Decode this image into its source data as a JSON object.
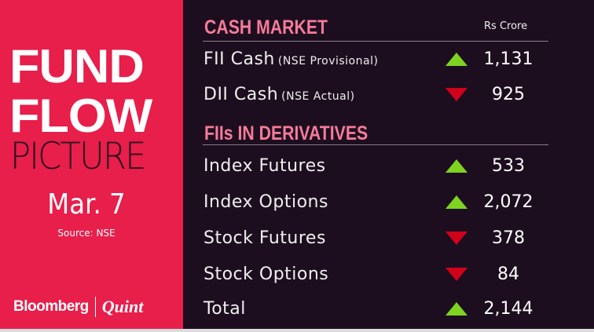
{
  "left": {
    "title1": "FUND",
    "title2": "FLOW",
    "title3": "PICTURE",
    "date": "Mar. 7",
    "source": "Source: NSE",
    "logo_a": "Bloomberg",
    "logo_b": "Quint"
  },
  "cash": {
    "header": "CASH MARKET",
    "unit": "Rs Crore",
    "rows": [
      {
        "label": "FII Cash",
        "sub": "(NSE Provisional)",
        "direction": "up",
        "value": "1,131"
      },
      {
        "label": "DII Cash",
        "sub": "(NSE Actual)",
        "direction": "down",
        "value": "925"
      }
    ]
  },
  "deriv": {
    "header": "FIIs IN DERIVATIVES",
    "rows": [
      {
        "label": "Index Futures",
        "direction": "up",
        "value": "533"
      },
      {
        "label": "Index Options",
        "direction": "up",
        "value": "2,072"
      },
      {
        "label": "Stock Futures",
        "direction": "down",
        "value": "378"
      },
      {
        "label": "Stock Options",
        "direction": "down",
        "value": "84"
      },
      {
        "label": "Total",
        "direction": "up",
        "value": "2,144"
      }
    ]
  },
  "colors": {
    "left_panel": "#e81e4b",
    "background": "#1d0e1f",
    "header": "#f57b99",
    "up": "#7ed321",
    "down": "#d0021b"
  }
}
